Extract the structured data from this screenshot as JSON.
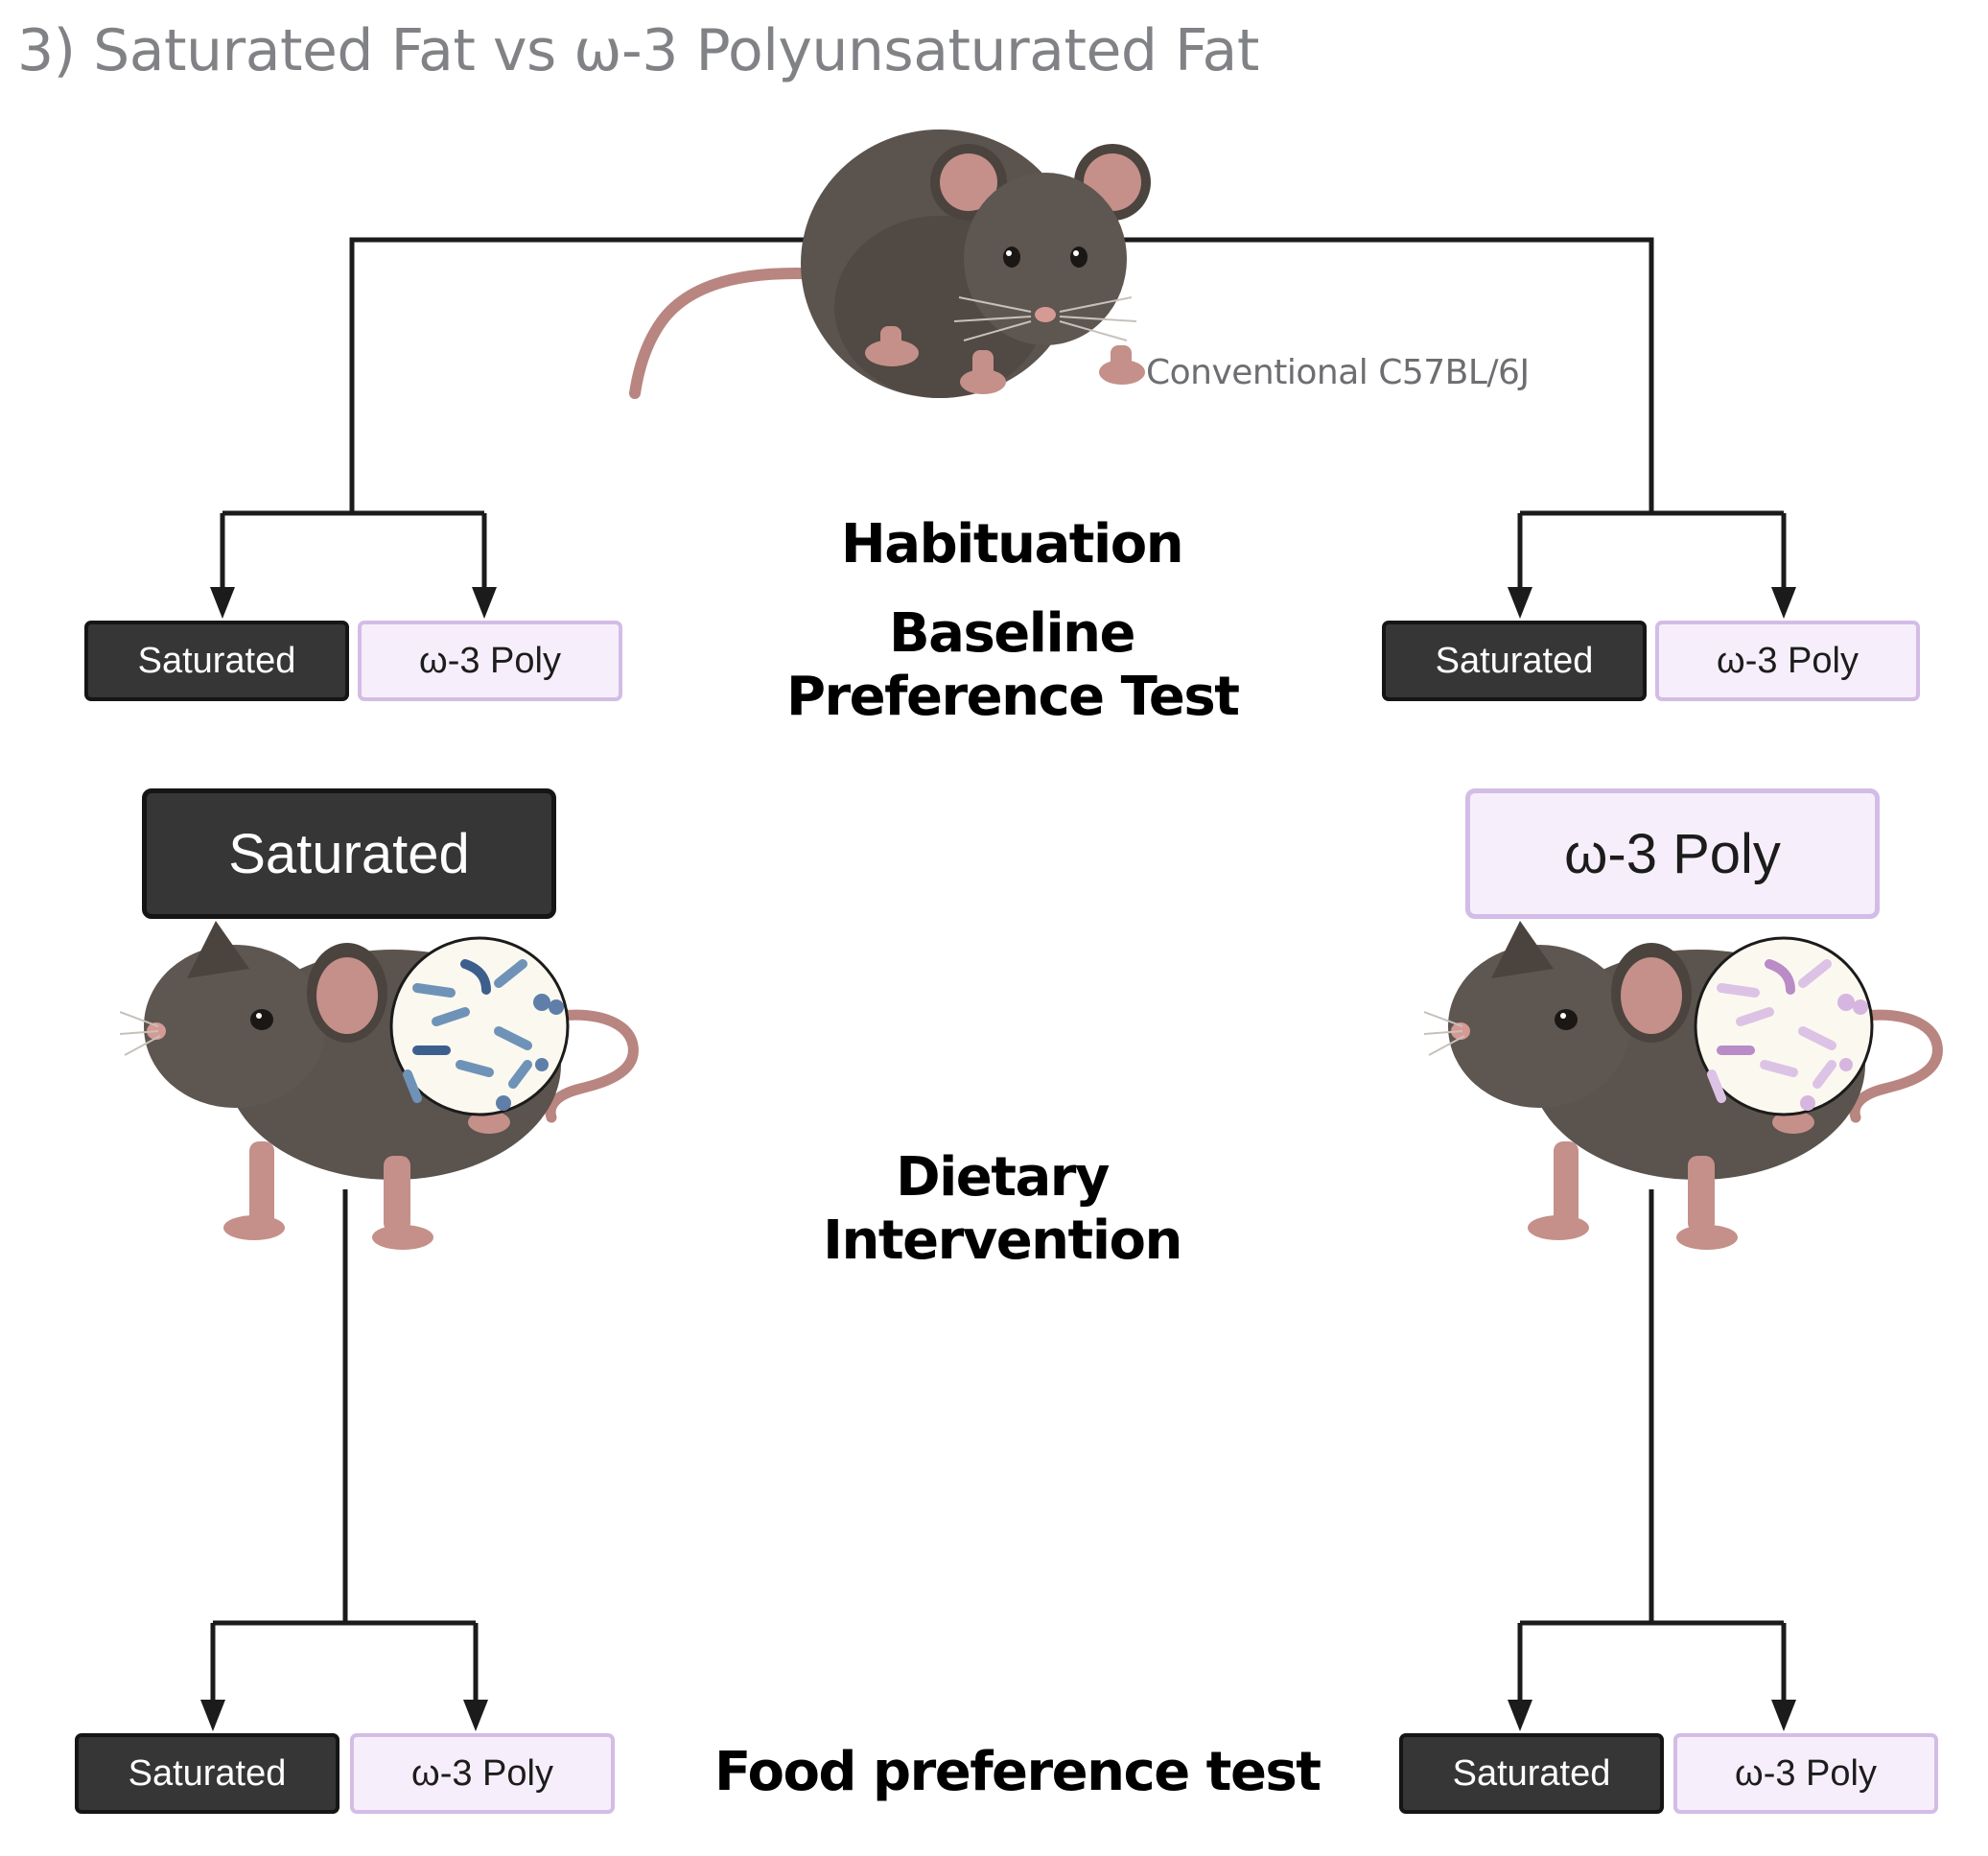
{
  "title": "3) Saturated Fat vs ω-3 Polyunsaturated Fat",
  "strain_label": "Conventional C57BL/6J",
  "stages": {
    "habituation": "Habituation",
    "baseline_line1": "Baseline",
    "baseline_line2": "Preference Test",
    "dietary_line1": "Dietary",
    "dietary_line2": "Intervention",
    "food_preference": "Food preference test"
  },
  "choices": {
    "saturated": "Saturated",
    "poly": "ω-3 Poly"
  },
  "colors": {
    "saturated_fill": "#363636",
    "poly_fill": "#f6effb",
    "poly_border": "#d3bce6",
    "mouse_fur": "#5b534d",
    "mouse_skin": "#c49089",
    "saturated_microbes": "#6f93b8",
    "poly_microbes": "#c9a4d6"
  },
  "icons": [
    "mouse-icon",
    "gut-microbiota-icon",
    "arrow-down-icon"
  ]
}
